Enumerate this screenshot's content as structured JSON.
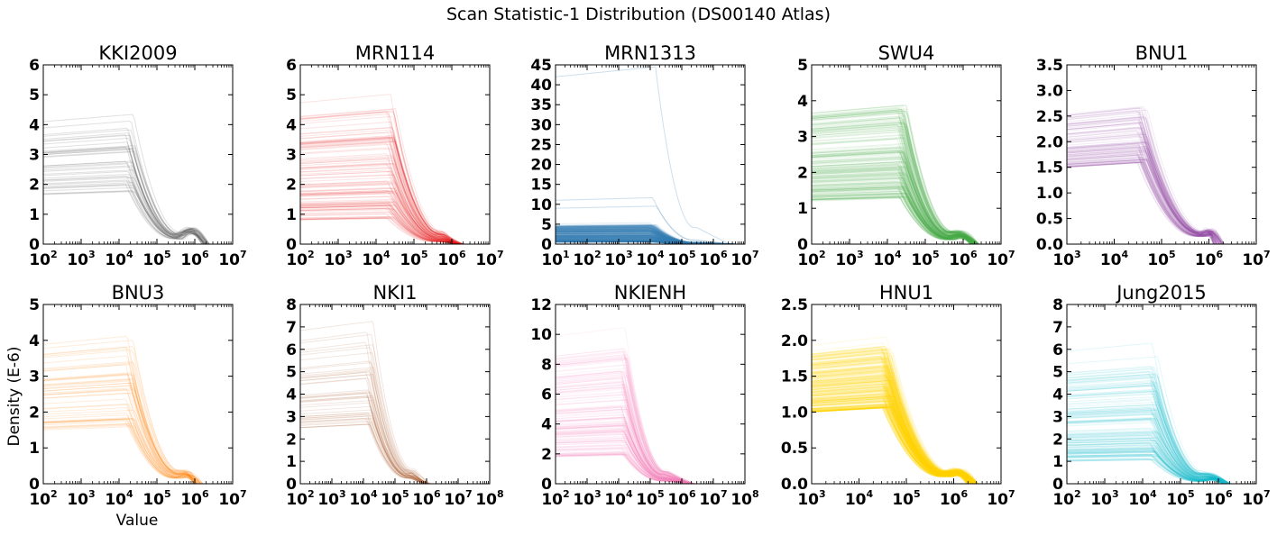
{
  "figure": {
    "suptitle": "Scan Statistic-1 Distribution (DS00140 Atlas)",
    "ylabel": "Density (E-6)",
    "xlabel": "Value"
  },
  "chart_data": [
    {
      "type": "line",
      "title": "KKI2009",
      "color": "#555555",
      "xscale": "log",
      "xlim_exp": [
        2,
        7
      ],
      "ylim": [
        0,
        6
      ],
      "yticks": [
        0,
        1,
        2,
        3,
        4,
        5,
        6
      ],
      "ytick_labels": [
        "0",
        "1",
        "2",
        "3",
        "4",
        "5",
        "6"
      ],
      "xticks": [
        "10^2",
        "10^3",
        "10^4",
        "10^5",
        "10^6",
        "10^7"
      ],
      "curves": {
        "count": 40,
        "plateau": [
          1.6,
          5.1
        ],
        "decline_exp": 4.9,
        "tail_end_exp": 6.3,
        "bump": 0.7,
        "opacity": 0.18
      }
    },
    {
      "type": "line",
      "title": "MRN114",
      "color": "#e41a1c",
      "xscale": "log",
      "xlim_exp": [
        2,
        7
      ],
      "ylim": [
        0,
        6
      ],
      "yticks": [
        0,
        1,
        2,
        3,
        4,
        5,
        6
      ],
      "ytick_labels": [
        "0",
        "1",
        "2",
        "3",
        "4",
        "5",
        "6"
      ],
      "xticks": [
        "10^2",
        "10^3",
        "10^4",
        "10^5",
        "10^6",
        "10^7"
      ],
      "curves": {
        "count": 110,
        "plateau": [
          0.8,
          5.7
        ],
        "decline_exp": 5.0,
        "tail_end_exp": 6.2,
        "bump": 0.0,
        "opacity": 0.12
      }
    },
    {
      "type": "line",
      "title": "MRN1313",
      "color": "#377eb8",
      "xscale": "log",
      "xlim_exp": [
        1,
        7
      ],
      "ylim": [
        0,
        45
      ],
      "yticks": [
        0,
        5,
        10,
        15,
        20,
        25,
        30,
        35,
        40,
        45
      ],
      "ytick_labels": [
        "0",
        "5",
        "10",
        "15",
        "20",
        "25",
        "30",
        "35",
        "40",
        "45"
      ],
      "xticks": [
        "10^1",
        "10^2",
        "10^3",
        "10^4",
        "10^5",
        "10^6",
        "10^7"
      ],
      "curves": {
        "count": 300,
        "plateau": [
          0.5,
          6.0
        ],
        "decline_exp": 4.7,
        "tail_end_exp": 6.6,
        "bump": 0.0,
        "opacity": 0.15
      },
      "outliers": [
        {
          "plateau": 42.0
        },
        {
          "plateau": 11.0
        },
        {
          "plateau": 9.0
        }
      ]
    },
    {
      "type": "line",
      "title": "SWU4",
      "color": "#4daf4a",
      "xscale": "log",
      "xlim_exp": [
        2,
        7
      ],
      "ylim": [
        0,
        5
      ],
      "yticks": [
        0,
        1,
        2,
        3,
        4,
        5
      ],
      "ytick_labels": [
        "0",
        "1",
        "2",
        "3",
        "4",
        "5"
      ],
      "xticks": [
        "10^2",
        "10^3",
        "10^4",
        "10^5",
        "10^6",
        "10^7"
      ],
      "curves": {
        "count": 200,
        "plateau": [
          1.2,
          4.5
        ],
        "decline_exp": 5.0,
        "tail_end_exp": 6.3,
        "bump": 0.3,
        "opacity": 0.12
      }
    },
    {
      "type": "line",
      "title": "BNU1",
      "color": "#984ea3",
      "xscale": "log",
      "xlim_exp": [
        3,
        7
      ],
      "ylim": [
        0,
        3.5
      ],
      "yticks": [
        0,
        0.5,
        1.0,
        1.5,
        2.0,
        2.5,
        3.0,
        3.5
      ],
      "ytick_labels": [
        "0.0",
        "0.5",
        "1.0",
        "1.5",
        "2.0",
        "2.5",
        "3.0",
        "3.5"
      ],
      "xticks": [
        "10^3",
        "10^4",
        "10^5",
        "10^6",
        "10^7"
      ],
      "curves": {
        "count": 100,
        "plateau": [
          1.5,
          2.9
        ],
        "decline_exp": 5.2,
        "tail_end_exp": 6.2,
        "bump": 0.3,
        "opacity": 0.12
      }
    },
    {
      "type": "line",
      "title": "BNU3",
      "color": "#ff7f00",
      "xscale": "log",
      "xlim_exp": [
        2,
        7
      ],
      "ylim": [
        0,
        5
      ],
      "yticks": [
        0,
        1,
        2,
        3,
        4,
        5
      ],
      "ytick_labels": [
        "0",
        "1",
        "2",
        "3",
        "4",
        "5"
      ],
      "xticks": [
        "10^2",
        "10^3",
        "10^4",
        "10^5",
        "10^6",
        "10^7"
      ],
      "curves": {
        "count": 50,
        "plateau": [
          1.5,
          4.7
        ],
        "decline_exp": 4.9,
        "tail_end_exp": 6.1,
        "bump": 0.3,
        "opacity": 0.15
      }
    },
    {
      "type": "line",
      "title": "NKI1",
      "color": "#a65628",
      "xscale": "log",
      "xlim_exp": [
        2,
        8
      ],
      "ylim": [
        0,
        8
      ],
      "yticks": [
        0,
        1,
        2,
        3,
        4,
        5,
        6,
        7,
        8
      ],
      "ytick_labels": [
        "0",
        "1",
        "2",
        "3",
        "4",
        "5",
        "6",
        "7",
        "8"
      ],
      "xticks": [
        "10^2",
        "10^3",
        "10^4",
        "10^5",
        "10^6",
        "10^7",
        "10^8"
      ],
      "curves": {
        "count": 45,
        "plateau": [
          2.5,
          7.3
        ],
        "decline_exp": 4.8,
        "tail_end_exp": 6.0,
        "bump": 0.0,
        "opacity": 0.15
      }
    },
    {
      "type": "line",
      "title": "NKIENH",
      "color": "#f781bf",
      "xscale": "log",
      "xlim_exp": [
        2,
        8
      ],
      "ylim": [
        0,
        12
      ],
      "yticks": [
        0,
        2,
        4,
        6,
        8,
        10,
        12
      ],
      "ytick_labels": [
        "0",
        "2",
        "4",
        "6",
        "8",
        "10",
        "12"
      ],
      "xticks": [
        "10^2",
        "10^3",
        "10^4",
        "10^5",
        "10^6",
        "10^7",
        "10^8"
      ],
      "curves": {
        "count": 160,
        "plateau": [
          1.8,
          10.8
        ],
        "decline_exp": 4.8,
        "tail_end_exp": 6.3,
        "bump": 0.0,
        "opacity": 0.1
      }
    },
    {
      "type": "line",
      "title": "HNU1",
      "color": "#ffd700",
      "xscale": "log",
      "xlim_exp": [
        3,
        7
      ],
      "ylim": [
        0,
        2.5
      ],
      "yticks": [
        0,
        0.5,
        1.0,
        1.5,
        2.0,
        2.5
      ],
      "ytick_labels": [
        "0.0",
        "0.5",
        "1.0",
        "1.5",
        "2.0",
        "2.5"
      ],
      "xticks": [
        "10^3",
        "10^4",
        "10^5",
        "10^6",
        "10^7"
      ],
      "curves": {
        "count": 300,
        "plateau": [
          1.0,
          2.1
        ],
        "decline_exp": 5.2,
        "tail_end_exp": 6.4,
        "bump": 0.2,
        "opacity": 0.12
      }
    },
    {
      "type": "line",
      "title": "Jung2015",
      "color": "#17becf",
      "xscale": "log",
      "xlim_exp": [
        2,
        7
      ],
      "ylim": [
        0,
        8
      ],
      "yticks": [
        0,
        1,
        2,
        3,
        4,
        5,
        6,
        7,
        8
      ],
      "ytick_labels": [
        "0",
        "1",
        "2",
        "3",
        "4",
        "5",
        "6",
        "7",
        "8"
      ],
      "xticks": [
        "10^2",
        "10^3",
        "10^4",
        "10^5",
        "10^6",
        "10^7"
      ],
      "curves": {
        "count": 150,
        "plateau": [
          1.0,
          6.5
        ],
        "decline_exp": 4.9,
        "tail_end_exp": 6.2,
        "bump": 0.3,
        "opacity": 0.12
      }
    }
  ]
}
